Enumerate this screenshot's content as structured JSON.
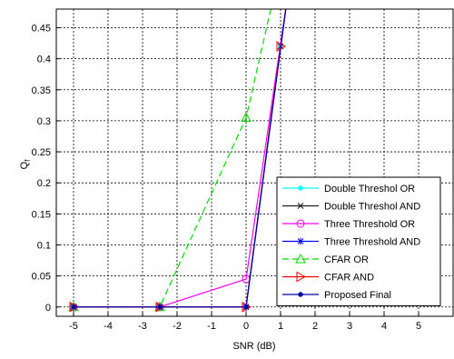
{
  "chart_data": {
    "type": "line",
    "xlabel": "SNR (dB)",
    "ylabel": "Q",
    "ylabel_subscript": "f",
    "xlim": [
      -5.5,
      6.0
    ],
    "ylim": [
      -0.015,
      0.48
    ],
    "xticks": [
      -5,
      -4,
      -3,
      -2,
      -1,
      0,
      1,
      2,
      3,
      4,
      5
    ],
    "yticks": [
      0,
      0.05,
      0.1,
      0.15,
      0.2,
      0.25,
      0.3,
      0.35,
      0.4,
      0.45
    ],
    "grid": true,
    "legend_position": "bottom-right",
    "series": [
      {
        "name": "Double Threshol OR",
        "color": "#00ffff",
        "dash": "solid",
        "marker": "dot",
        "x": [
          -5,
          -2.5,
          0,
          1
        ],
        "y": [
          0,
          0,
          0,
          0.42
        ]
      },
      {
        "name": "Double Threshol AND",
        "color": "#222222",
        "dash": "solid",
        "marker": "x",
        "x": [
          -5,
          -2.5,
          0,
          1
        ],
        "y": [
          0,
          0,
          0,
          0.42
        ]
      },
      {
        "name": "Three Threshold OR",
        "color": "#ff00ff",
        "dash": "solid",
        "marker": "circle",
        "x": [
          -5,
          -2.5,
          0,
          1.2
        ],
        "y": [
          0,
          0,
          0.045,
          0.5
        ]
      },
      {
        "name": "Three Threshold AND",
        "color": "#0000ff",
        "dash": "solid",
        "marker": "star",
        "x": [
          -5,
          -2.5,
          0,
          1.2
        ],
        "y": [
          0,
          0,
          0,
          0.5
        ]
      },
      {
        "name": "CFAR OR",
        "color": "#00dd00",
        "dash": "dashed",
        "marker": "triangle-up",
        "x": [
          -5,
          -2.5,
          0,
          0.8
        ],
        "y": [
          0,
          0,
          0.305,
          0.5
        ]
      },
      {
        "name": "CFAR AND",
        "color": "#ff0000",
        "dash": "solid",
        "marker": "triangle-right",
        "x": [
          -5,
          -2.5,
          0,
          1
        ],
        "y": [
          0,
          0,
          0,
          0.42
        ]
      },
      {
        "name": "Proposed Final",
        "color": "#0000aa",
        "dash": "solid",
        "marker": "dot",
        "x": [
          -5,
          -2.5,
          0,
          1.2
        ],
        "y": [
          0,
          0,
          0,
          0.5
        ]
      }
    ]
  }
}
